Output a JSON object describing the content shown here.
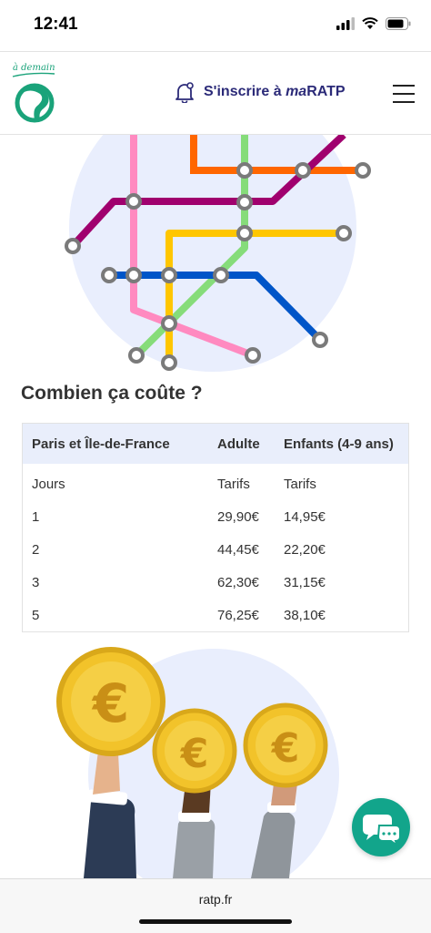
{
  "status_bar": {
    "time": "12:41"
  },
  "header": {
    "logo_tagline": "à demain",
    "subscribe_prefix": "S'inscrire à ",
    "subscribe_ma": "ma",
    "subscribe_brand": "RATP"
  },
  "pricing": {
    "title": "Combien ça coûte ?",
    "columns": [
      "Paris et Île-de-France",
      "Adulte",
      "Enfants (4-9 ans)"
    ],
    "rows": [
      [
        "Jours",
        "Tarifs",
        "Tarifs"
      ],
      [
        "1",
        "29,90€",
        "14,95€"
      ],
      [
        "2",
        "44,45€",
        "22,20€"
      ],
      [
        "3",
        "62,30€",
        "31,15€"
      ],
      [
        "5",
        "76,25€",
        "38,10€"
      ]
    ]
  },
  "browser": {
    "url": "ratp.fr"
  },
  "icons": {
    "bell": "bell-icon",
    "menu": "hamburger-menu-icon",
    "chat": "chat-bubbles-icon",
    "euro": "euro-coin-icon"
  },
  "colors": {
    "brand_green": "#1aa37a",
    "brand_navy": "#2b2a78",
    "table_header_bg": "#e9eefb",
    "chat_teal": "#12a58b",
    "metro_pink": "#ff8ac0",
    "metro_purple": "#a0006e",
    "metro_orange": "#ff6600",
    "metro_green": "#86dc7a",
    "metro_yellow": "#ffc600",
    "metro_blue": "#0055c8"
  }
}
